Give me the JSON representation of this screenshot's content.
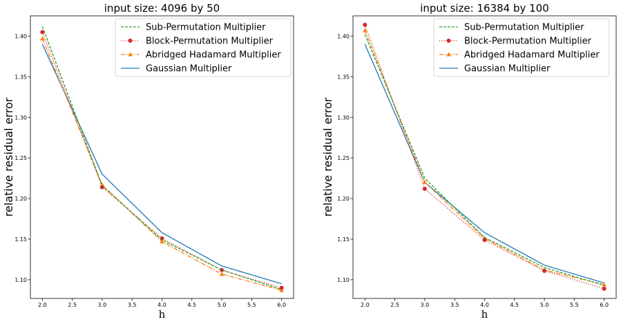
{
  "chart_data": [
    {
      "type": "line",
      "title": "input size: 4096 by 50",
      "xlabel": "h",
      "ylabel": "relative residual error",
      "x": [
        2.0,
        3.0,
        4.0,
        5.0,
        6.0
      ],
      "xlim": [
        1.8,
        6.2
      ],
      "ylim": [
        1.077,
        1.425
      ],
      "xticks": [
        "2.0",
        "2.5",
        "3.0",
        "3.5",
        "4.0",
        "4.5",
        "5.0",
        "5.5",
        "6.0"
      ],
      "yticks": [
        "1.10",
        "1.15",
        "1.20",
        "1.25",
        "1.30",
        "1.35",
        "1.40"
      ],
      "legend": "top-right",
      "grid": false,
      "series": [
        {
          "name": "Sub-Permutation Multiplier",
          "color": "#2ca02c",
          "style": "dashed",
          "marker": "none",
          "values": [
            1.412,
            1.216,
            1.149,
            1.112,
            1.088
          ]
        },
        {
          "name": "Block-Permutation Multiplier",
          "color": "#d62728",
          "style": "dotted",
          "marker": "circle",
          "values": [
            1.405,
            1.214,
            1.151,
            1.112,
            1.09
          ]
        },
        {
          "name": "Abridged Hadamard Multiplier",
          "color": "#ff7f0e",
          "style": "dashdot",
          "marker": "triangle",
          "values": [
            1.397,
            1.217,
            1.147,
            1.107,
            1.087
          ]
        },
        {
          "name": "Gaussian Multiplier",
          "color": "#1f77b4",
          "style": "solid",
          "marker": "none",
          "values": [
            1.39,
            1.23,
            1.158,
            1.117,
            1.095
          ]
        }
      ]
    },
    {
      "type": "line",
      "title": "input size: 16384 by 100",
      "xlabel": "h",
      "ylabel": "relative residual error",
      "x": [
        2.0,
        3.0,
        4.0,
        5.0,
        6.0
      ],
      "xlim": [
        1.8,
        6.2
      ],
      "ylim": [
        1.077,
        1.425
      ],
      "xticks": [
        "2.0",
        "2.5",
        "3.0",
        "3.5",
        "4.0",
        "4.5",
        "5.0",
        "5.5",
        "6.0"
      ],
      "yticks": [
        "1.10",
        "1.15",
        "1.20",
        "1.25",
        "1.30",
        "1.35",
        "1.40"
      ],
      "legend": "top-right",
      "grid": false,
      "series": [
        {
          "name": "Sub-Permutation Multiplier",
          "color": "#2ca02c",
          "style": "dashed",
          "marker": "none",
          "values": [
            1.402,
            1.225,
            1.152,
            1.115,
            1.093
          ]
        },
        {
          "name": "Block-Permutation Multiplier",
          "color": "#d62728",
          "style": "dotted",
          "marker": "circle",
          "values": [
            1.414,
            1.212,
            1.149,
            1.111,
            1.089
          ]
        },
        {
          "name": "Abridged Hadamard Multiplier",
          "color": "#ff7f0e",
          "style": "dashdot",
          "marker": "triangle",
          "values": [
            1.407,
            1.22,
            1.151,
            1.112,
            1.094
          ]
        },
        {
          "name": "Gaussian Multiplier",
          "color": "#1f77b4",
          "style": "solid",
          "marker": "none",
          "values": [
            1.39,
            1.22,
            1.158,
            1.118,
            1.096
          ]
        }
      ]
    }
  ]
}
